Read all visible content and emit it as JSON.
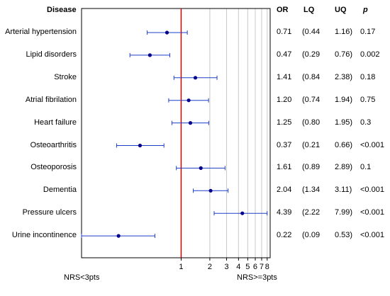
{
  "chart_data": {
    "type": "forest",
    "headers": {
      "disease": "Disease",
      "or": "OR",
      "lq": "LQ",
      "uq": "UQ",
      "p": "p"
    },
    "rows": [
      {
        "disease": "Arterial hypertension",
        "or": 0.71,
        "lq": 0.44,
        "uq": 1.16,
        "or_text": "0.71",
        "lq_text": "(0.44",
        "uq_text": "1.16)",
        "p_text": "0.17"
      },
      {
        "disease": "Lipid disorders",
        "or": 0.47,
        "lq": 0.29,
        "uq": 0.76,
        "or_text": "0.47",
        "lq_text": "(0.29",
        "uq_text": "0.76)",
        "p_text": "0.002"
      },
      {
        "disease": "Stroke",
        "or": 1.41,
        "lq": 0.84,
        "uq": 2.38,
        "or_text": "1.41",
        "lq_text": "(0.84",
        "uq_text": "2.38)",
        "p_text": "0.18"
      },
      {
        "disease": "Atrial fibrilation",
        "or": 1.2,
        "lq": 0.74,
        "uq": 1.94,
        "or_text": "1.20",
        "lq_text": "(0.74",
        "uq_text": "1.94)",
        "p_text": "0.75"
      },
      {
        "disease": "Heart failure",
        "or": 1.25,
        "lq": 0.8,
        "uq": 1.95,
        "or_text": "1.25",
        "lq_text": "(0.80",
        "uq_text": "1.95)",
        "p_text": "0.3"
      },
      {
        "disease": "Osteoarthritis",
        "or": 0.37,
        "lq": 0.21,
        "uq": 0.66,
        "or_text": "0.37",
        "lq_text": "(0.21",
        "uq_text": "0.66)",
        "p_text": "<0.001"
      },
      {
        "disease": "Osteoporosis",
        "or": 1.61,
        "lq": 0.89,
        "uq": 2.89,
        "or_text": "1.61",
        "lq_text": "(0.89",
        "uq_text": "2.89)",
        "p_text": "0.1"
      },
      {
        "disease": "Dementia",
        "or": 2.04,
        "lq": 1.34,
        "uq": 3.11,
        "or_text": "2.04",
        "lq_text": "(1.34",
        "uq_text": "3.11)",
        "p_text": "<0.001"
      },
      {
        "disease": "Pressure ulcers",
        "or": 4.39,
        "lq": 2.22,
        "uq": 7.99,
        "or_text": "4.39",
        "lq_text": "(2.22",
        "uq_text": "7.99)",
        "p_text": "<0.001"
      },
      {
        "disease": "Urine incontinence",
        "or": 0.22,
        "lq": 0.09,
        "uq": 0.53,
        "or_text": "0.22",
        "lq_text": "(0.09",
        "uq_text": "0.53)",
        "p_text": "<0.001"
      }
    ],
    "x_scale": "log",
    "xlim": [
      0.09,
      8.6
    ],
    "x_ticks": [
      1,
      2,
      3,
      4,
      5,
      6,
      7,
      8
    ],
    "x_tick_labels": [
      "1",
      "2",
      "3",
      "4",
      "5",
      "6",
      "7",
      "8"
    ],
    "reference_line": 1,
    "footnote_left": "NRS<3pts",
    "footnote_right": "NRS>=3pts",
    "colors": {
      "marker": "#00008b",
      "ci_line": "#1f3fc8",
      "reference_line": "#d40000",
      "grid": "#c8c8c8",
      "axis": "#000000"
    }
  }
}
